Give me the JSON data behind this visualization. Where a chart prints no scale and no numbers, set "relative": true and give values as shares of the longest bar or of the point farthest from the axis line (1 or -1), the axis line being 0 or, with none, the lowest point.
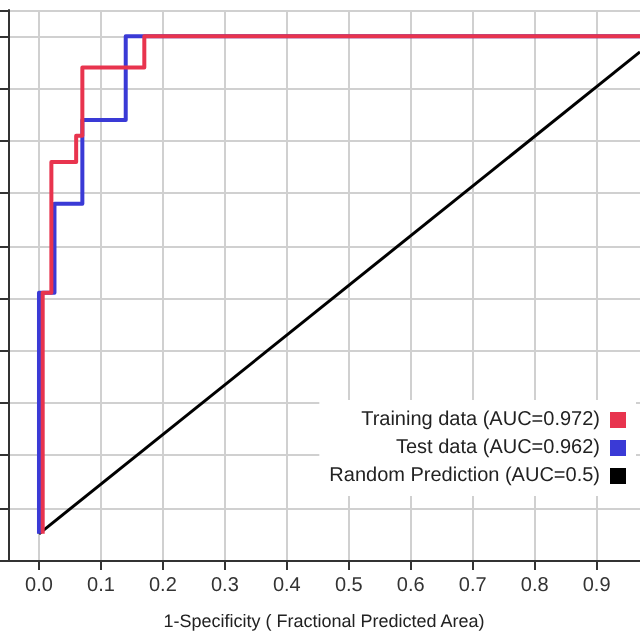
{
  "chart_data": {
    "type": "line",
    "xlabel": "1-Specificity ( Fractional Predicted Area)",
    "xlim": [
      -0.05,
      0.97
    ],
    "xticks": [
      {
        "value": 0,
        "label": "0.0"
      },
      0.1,
      0.2,
      0.3,
      0.4,
      0.5,
      0.6,
      0.7,
      0.8,
      0.9
    ],
    "relative": true,
    "tick_labels": "x",
    "grid": true,
    "legend": "bottom right",
    "marker": "none",
    "line_style": "solid",
    "series": [
      {
        "name": "Training data (AUC=0.972)",
        "color": "#e8344e",
        "x": [
          0.006,
          0.006,
          0.02,
          0.02,
          0.06,
          0.06,
          0.07,
          0.07,
          0.17,
          0.17,
          0.97
        ],
        "values": [
          0.05,
          0.51,
          0.51,
          0.76,
          0.76,
          0.81,
          0.81,
          0.94,
          0.94,
          1,
          1
        ]
      },
      {
        "name": "Test data (AUC=0.962)",
        "color": "#3a3ad6",
        "x": [
          0,
          0,
          0.025,
          0.025,
          0.07,
          0.07,
          0.14,
          0.14,
          0.97
        ],
        "values": [
          0.05,
          0.51,
          0.51,
          0.68,
          0.68,
          0.84,
          0.84,
          1,
          1
        ]
      },
      {
        "name": "Random Prediction (AUC=0.5)",
        "color": "#000000",
        "x": [
          0,
          0.97
        ],
        "values": [
          0.05,
          0.97
        ]
      }
    ]
  }
}
